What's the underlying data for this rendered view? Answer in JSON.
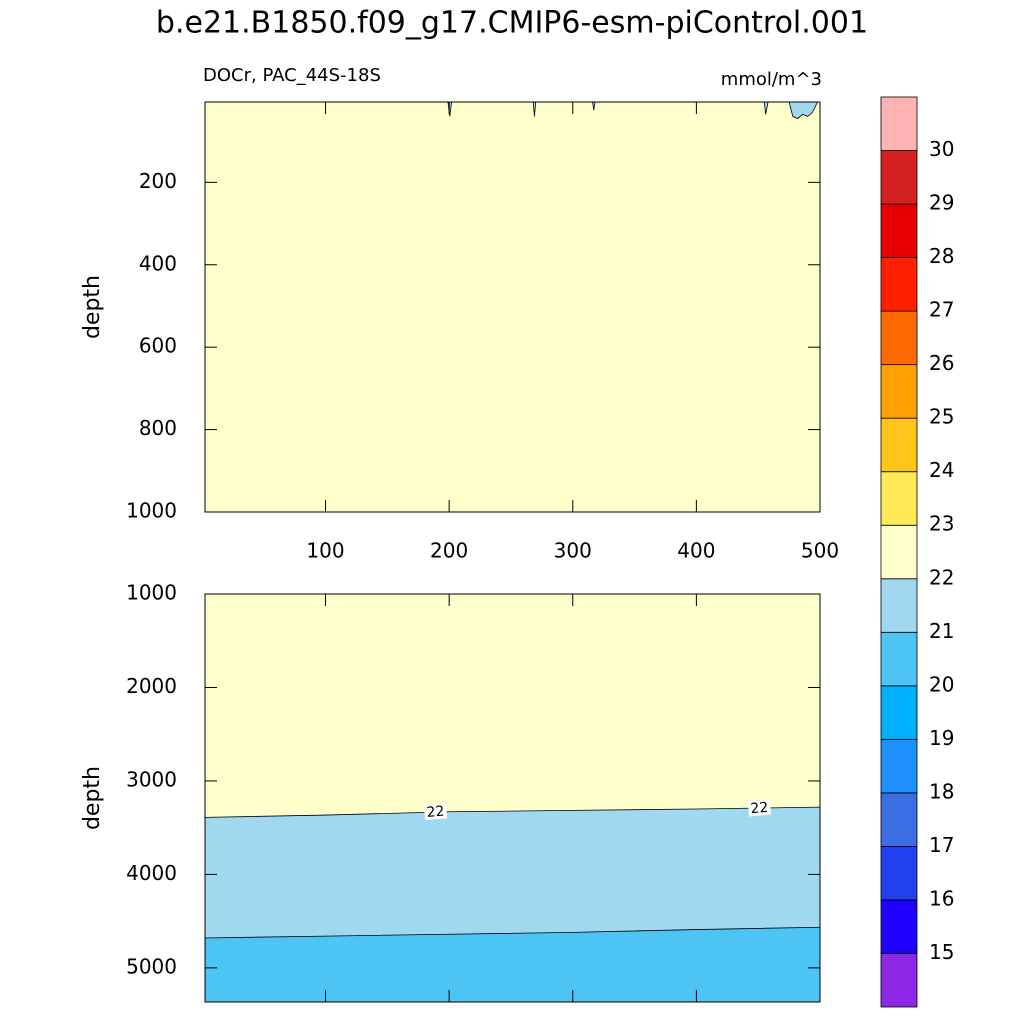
{
  "chart_data": {
    "type": "contour",
    "title": "b.e21.B1850.f09_g17.CMIP6-esm-piControl.001",
    "panels": [
      {
        "left_string": "DOCr, PAC_44S-18S",
        "right_string": "mmol/m^3",
        "ylabel": "depth",
        "xlim": [
          2.5,
          500
        ],
        "xticks": [
          100,
          200,
          300,
          400,
          500
        ],
        "xtick_labels": true,
        "ylim": [
          5,
          1000
        ],
        "yticks": [
          200,
          400,
          600,
          800,
          1000
        ],
        "background": "#ffffcc",
        "contours": [
          {
            "level": 22,
            "fill_above": "#a0d8f0",
            "x": [
              199,
              200.5,
              202,
              null,
              268,
              269,
              270,
              null,
              316,
              317,
              318,
              null,
              455,
              456,
              458,
              null,
              475,
              478,
              482,
              486,
              490,
              494,
              498
            ],
            "y": [
              5,
              40,
              5,
              null,
              5,
              40,
              5,
              null,
              5,
              25,
              5,
              null,
              5,
              35,
              5,
              null,
              5,
              40,
              45,
              35,
              40,
              30,
              5
            ]
          }
        ],
        "labels": []
      },
      {
        "ylabel": "depth",
        "xlim": [
          2.5,
          500
        ],
        "xticks": [
          100,
          200,
          300,
          400,
          500
        ],
        "xtick_labels": false,
        "ylim": [
          1000,
          5365
        ],
        "yticks": [
          1000,
          2000,
          3000,
          4000,
          5000
        ],
        "background": "#ffffcc",
        "contours": [
          {
            "level": 22,
            "fill_below": "#a0d8f0",
            "x": [
              2.5,
              100,
              200,
              300,
              400,
              500
            ],
            "y": [
              3390,
              3365,
              3330,
              3315,
              3300,
              3280
            ]
          },
          {
            "level": 21,
            "fill_below": "#4cc4f4",
            "x": [
              2.5,
              100,
              200,
              300,
              400,
              500
            ],
            "y": [
              4680,
              4660,
              4640,
              4620,
              4590,
              4565
            ]
          }
        ],
        "labels": [
          {
            "x": 189,
            "y": 3335,
            "value": 22
          },
          {
            "x": 451,
            "y": 3295,
            "value": 22
          }
        ]
      }
    ],
    "colorbar": {
      "levels": [
        15,
        16,
        17,
        18,
        19,
        20,
        21,
        22,
        23,
        24,
        25,
        26,
        27,
        28,
        29,
        30
      ],
      "colors": [
        "#8c28e6",
        "#2000ff",
        "#2340f0",
        "#3a6fe3",
        "#1e90ff",
        "#00b0ff",
        "#4cc4f4",
        "#a0d8f0",
        "#ffffcc",
        "#ffe957",
        "#ffc41a",
        "#ff9f00",
        "#ff6a00",
        "#ff2000",
        "#e60000",
        "#d42020",
        "#ffb3b3"
      ]
    }
  }
}
